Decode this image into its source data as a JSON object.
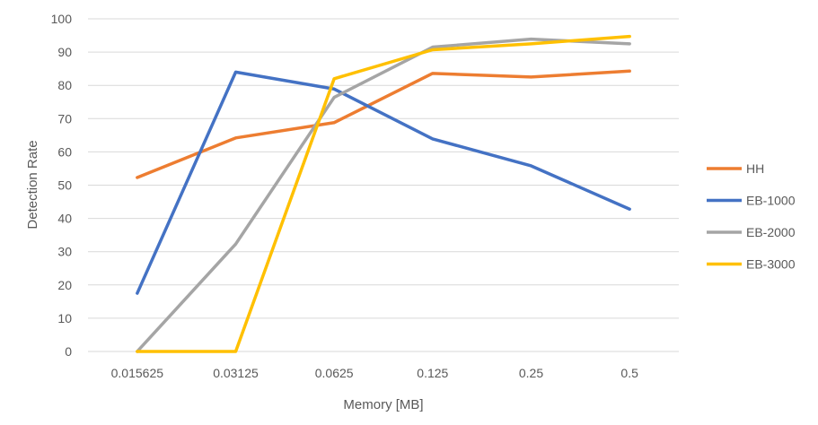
{
  "chart_data": {
    "type": "line",
    "xlabel": "Memory [MB]",
    "ylabel": "Detection Rate",
    "categories": [
      "0.015625",
      "0.03125",
      "0.0625",
      "0.125",
      "0.25",
      "0.5"
    ],
    "ylim": [
      0,
      100
    ],
    "yticks": [
      "0",
      "10",
      "20",
      "30",
      "40",
      "50",
      "60",
      "70",
      "80",
      "90",
      "100"
    ],
    "grid": true,
    "legend_position": "right",
    "series": [
      {
        "name": "HH",
        "color": "#ED7D31",
        "values": [
          52.3,
          64.2,
          68.8,
          83.6,
          82.5,
          84.3
        ]
      },
      {
        "name": "EB-1000",
        "color": "#4472C4",
        "values": [
          17.5,
          84.0,
          78.9,
          63.9,
          55.8,
          42.8
        ]
      },
      {
        "name": "EB-2000",
        "color": "#A5A5A5",
        "values": [
          0,
          32.3,
          76.4,
          91.5,
          93.9,
          92.5
        ]
      },
      {
        "name": "EB-3000",
        "color": "#FFC000",
        "values": [
          0,
          0,
          82.0,
          90.7,
          92.5,
          94.7
        ]
      }
    ]
  }
}
